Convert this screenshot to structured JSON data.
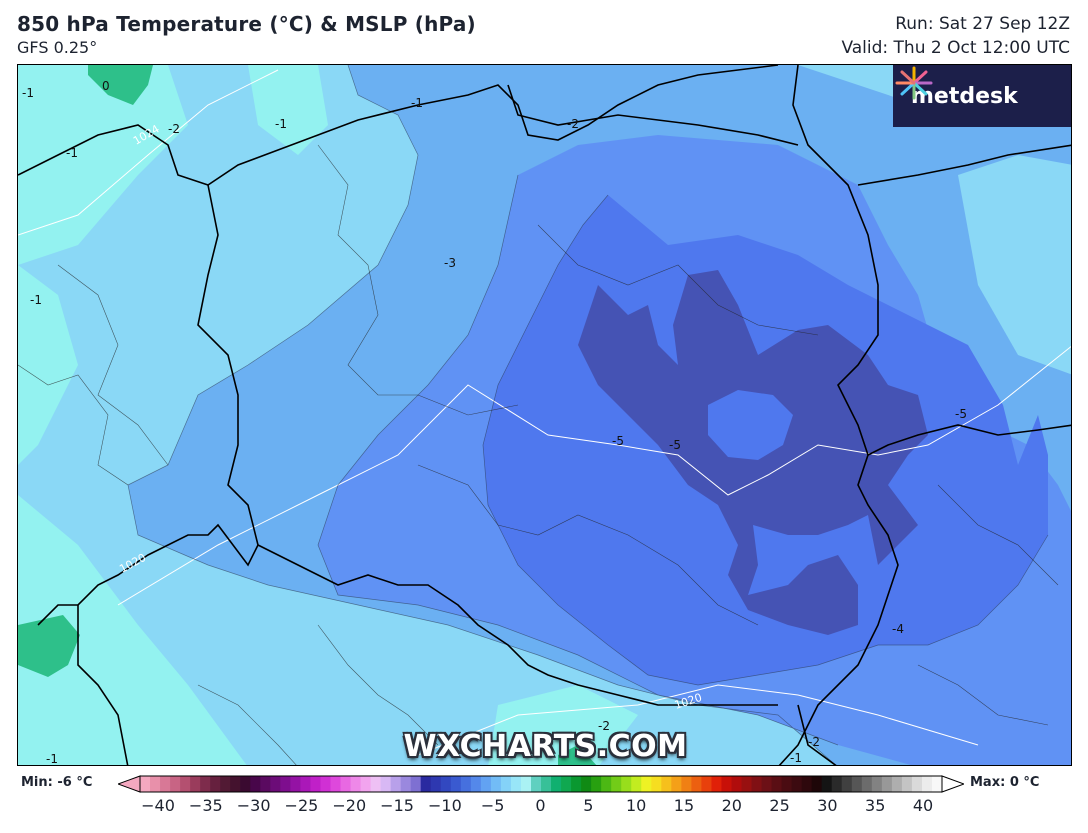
{
  "header": {
    "title": "850 hPa Temperature (°C) & MSLP (hPa)",
    "model": "GFS 0.25°",
    "run": "Run: Sat 27 Sep 12Z",
    "valid": "Valid: Thu 2 Oct 12:00 UTC"
  },
  "logo": {
    "text": "metdesk"
  },
  "watermark": "WXCHARTS.COM",
  "map": {
    "contour_labels": [
      "-1",
      "0",
      "-1",
      "-2",
      "-1",
      "-2",
      "-3",
      "-1",
      "-1",
      "-5",
      "-5",
      "-5",
      "-4",
      "-2",
      "-1",
      "-2",
      "-1"
    ],
    "pressure_labels": [
      "1020",
      "1020",
      "1024"
    ],
    "fill_colors": {
      "t0": "#2ec08a",
      "t_minus1": "#93f2f0",
      "t_minus2": "#8ad8f6",
      "t_minus3": "#6bb0f2",
      "t_minus4": "#6092f4",
      "t_minus5": "#4f78ee",
      "t_minus6": "#4553b4"
    }
  },
  "legend": {
    "min_label": "Min: -6 °C",
    "max_label": "Max: 0 °C",
    "ticks": [
      "−40",
      "−35",
      "−30",
      "−25",
      "−20",
      "−15",
      "−10",
      "−5",
      "0",
      "5",
      "10",
      "15",
      "20",
      "25",
      "30",
      "35",
      "40"
    ],
    "colors": [
      "#f4a8c0",
      "#e890aa",
      "#d87896",
      "#c86484",
      "#b45070",
      "#9a3c5c",
      "#7e2c4c",
      "#66203e",
      "#521a34",
      "#44122e",
      "#3a0a30",
      "#48064a",
      "#5a0a60",
      "#6c0c78",
      "#7e0e8e",
      "#9412a4",
      "#aa18b8",
      "#c020c8",
      "#d030d4",
      "#de48dc",
      "#e868e2",
      "#ee88e8",
      "#f2a4ee",
      "#eec0f4",
      "#d8b8f4",
      "#b8a0ea",
      "#9a88de",
      "#7e70d2",
      "#2a2aa0",
      "#2e38b0",
      "#3248c0",
      "#3a5ad0",
      "#4670de",
      "#5488ea",
      "#62a2f2",
      "#72bcf6",
      "#84d2f8",
      "#98e6f8",
      "#aaf2f4",
      "#60d0c0",
      "#38c098",
      "#10b070",
      "#10a850",
      "#0a9830",
      "#108a14",
      "#28a010",
      "#4cb814",
      "#72cc18",
      "#98de1c",
      "#c2ec20",
      "#eef224",
      "#f6de20",
      "#f6c01c",
      "#f4a018",
      "#f08014",
      "#ec6010",
      "#e8400c",
      "#e02008",
      "#c81008",
      "#b00c0c",
      "#981010",
      "#801014",
      "#6c1016",
      "#5a0e14",
      "#4a0c12",
      "#3c0a10",
      "#2e080c",
      "#1e0608",
      "#141414",
      "#2a2a2a",
      "#404040",
      "#565656",
      "#6c6c6c",
      "#828282",
      "#989898",
      "#aeaeae",
      "#c4c4c4",
      "#dadada",
      "#ececec",
      "#f8f8f8"
    ]
  }
}
